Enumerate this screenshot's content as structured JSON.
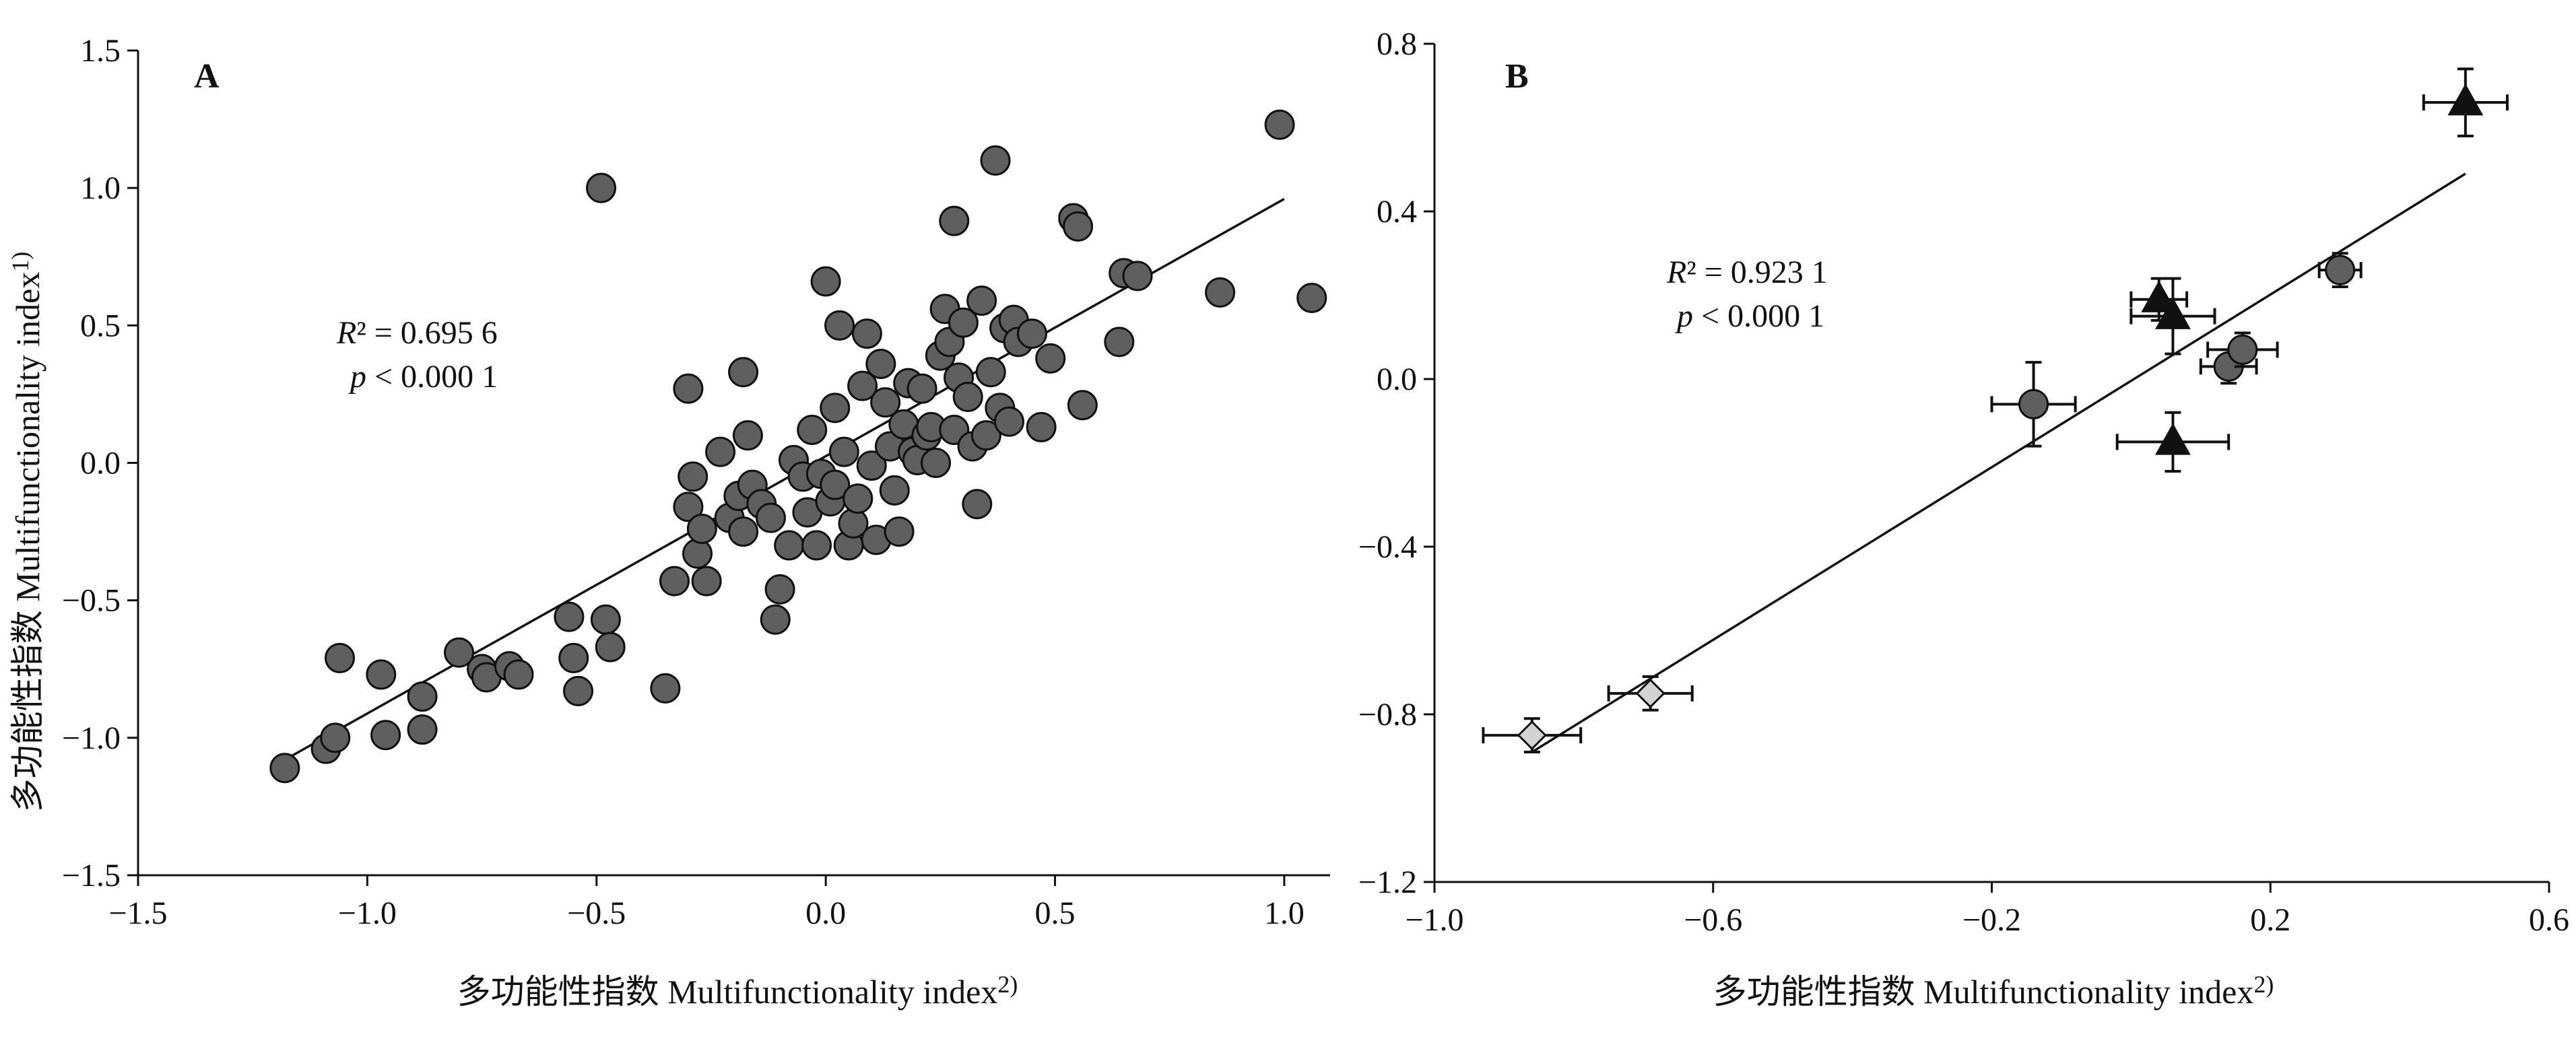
{
  "axis_text": {
    "y_title": "多功能性指数  Multifunctionality index",
    "y_sup": "1)",
    "x_title": "多功能性指数  Multifunctionality index",
    "x_sup": "2)"
  },
  "chart_data": [
    {
      "type": "scatter",
      "panel": "A",
      "xlabel": "多功能性指数  Multifunctionality index2)",
      "ylabel": "多功能性指数  Multifunctionality index1)",
      "xlim": [
        -1.5,
        1.1
      ],
      "ylim": [
        -1.5,
        1.5
      ],
      "xticks": [
        -1.5,
        -1.0,
        -0.5,
        0.0,
        0.5,
        1.0
      ],
      "yticks": [
        -1.5,
        -1.0,
        -0.5,
        0.0,
        0.5,
        1.0,
        1.5
      ],
      "xtick_labels": [
        "−1.5",
        "−1.0",
        "−0.5",
        "0.0",
        "0.5",
        "1.0"
      ],
      "ytick_labels": [
        "−1.5",
        "−1.0",
        "−0.5",
        "0.0",
        "0.5",
        "1.0",
        "1.5"
      ],
      "stat_line1": "R² = 0.695 6",
      "stat_line2": "p < 0.000 1",
      "fit": {
        "x": [
          -1.18,
          1.0
        ],
        "y": [
          -1.08,
          0.96
        ]
      },
      "points": [
        [
          -1.18,
          -1.11
        ],
        [
          -1.09,
          -1.04
        ],
        [
          -1.07,
          -1.0
        ],
        [
          -1.06,
          -0.71
        ],
        [
          -0.97,
          -0.77
        ],
        [
          -0.96,
          -0.99
        ],
        [
          -0.88,
          -0.85
        ],
        [
          -0.88,
          -0.97
        ],
        [
          -0.8,
          -0.69
        ],
        [
          -0.75,
          -0.75
        ],
        [
          -0.74,
          -0.78
        ],
        [
          -0.69,
          -0.74
        ],
        [
          -0.67,
          -0.77
        ],
        [
          -0.56,
          -0.56
        ],
        [
          -0.55,
          -0.71
        ],
        [
          -0.54,
          -0.83
        ],
        [
          -0.48,
          -0.57
        ],
        [
          -0.47,
          -0.67
        ],
        [
          -0.49,
          1.0
        ],
        [
          -0.35,
          -0.82
        ],
        [
          -0.33,
          -0.43
        ],
        [
          -0.3,
          -0.16
        ],
        [
          -0.3,
          0.27
        ],
        [
          -0.29,
          -0.05
        ],
        [
          -0.28,
          -0.33
        ],
        [
          -0.27,
          -0.24
        ],
        [
          -0.26,
          -0.43
        ],
        [
          -0.23,
          0.04
        ],
        [
          -0.21,
          -0.2
        ],
        [
          -0.19,
          -0.12
        ],
        [
          -0.18,
          -0.25
        ],
        [
          -0.18,
          0.33
        ],
        [
          -0.17,
          0.1
        ],
        [
          -0.16,
          -0.08
        ],
        [
          -0.14,
          -0.15
        ],
        [
          -0.12,
          -0.2
        ],
        [
          -0.11,
          -0.57
        ],
        [
          -0.1,
          -0.46
        ],
        [
          -0.08,
          -0.3
        ],
        [
          -0.07,
          0.01
        ],
        [
          -0.05,
          -0.05
        ],
        [
          -0.04,
          -0.18
        ],
        [
          -0.03,
          0.12
        ],
        [
          -0.02,
          -0.3
        ],
        [
          -0.01,
          -0.04
        ],
        [
          0.0,
          0.66
        ],
        [
          0.01,
          -0.14
        ],
        [
          0.02,
          0.2
        ],
        [
          0.02,
          -0.08
        ],
        [
          0.03,
          0.5
        ],
        [
          0.04,
          0.04
        ],
        [
          0.05,
          -0.3
        ],
        [
          0.06,
          -0.22
        ],
        [
          0.07,
          -0.13
        ],
        [
          0.08,
          0.28
        ],
        [
          0.09,
          0.47
        ],
        [
          0.1,
          -0.01
        ],
        [
          0.11,
          -0.28
        ],
        [
          0.12,
          0.36
        ],
        [
          0.13,
          0.22
        ],
        [
          0.14,
          0.06
        ],
        [
          0.15,
          -0.1
        ],
        [
          0.16,
          -0.25
        ],
        [
          0.17,
          0.14
        ],
        [
          0.18,
          0.29
        ],
        [
          0.19,
          0.04
        ],
        [
          0.2,
          0.01
        ],
        [
          0.21,
          0.27
        ],
        [
          0.22,
          0.1
        ],
        [
          0.23,
          0.13
        ],
        [
          0.24,
          0.0
        ],
        [
          0.25,
          0.39
        ],
        [
          0.26,
          0.56
        ],
        [
          0.27,
          0.44
        ],
        [
          0.28,
          0.12
        ],
        [
          0.28,
          0.88
        ],
        [
          0.29,
          0.31
        ],
        [
          0.3,
          0.51
        ],
        [
          0.31,
          0.24
        ],
        [
          0.32,
          0.06
        ],
        [
          0.33,
          -0.15
        ],
        [
          0.34,
          0.59
        ],
        [
          0.35,
          0.1
        ],
        [
          0.36,
          0.33
        ],
        [
          0.37,
          1.1
        ],
        [
          0.38,
          0.2
        ],
        [
          0.39,
          0.49
        ],
        [
          0.4,
          0.15
        ],
        [
          0.41,
          0.52
        ],
        [
          0.42,
          0.44
        ],
        [
          0.45,
          0.47
        ],
        [
          0.47,
          0.13
        ],
        [
          0.49,
          0.38
        ],
        [
          0.54,
          0.89
        ],
        [
          0.55,
          0.86
        ],
        [
          0.56,
          0.21
        ],
        [
          0.64,
          0.44
        ],
        [
          0.65,
          0.69
        ],
        [
          0.68,
          0.68
        ],
        [
          0.86,
          0.62
        ],
        [
          0.99,
          1.23
        ],
        [
          1.06,
          0.6
        ]
      ]
    },
    {
      "type": "scatter",
      "panel": "B",
      "xlabel": "多功能性指数  Multifunctionality index2)",
      "ylabel": "",
      "xlim": [
        -1.0,
        0.6
      ],
      "ylim": [
        -1.2,
        0.8
      ],
      "xticks": [
        -1.0,
        -0.6,
        -0.2,
        0.2,
        0.6
      ],
      "yticks": [
        -1.2,
        -0.8,
        -0.4,
        0.0,
        0.4,
        0.8
      ],
      "xtick_labels": [
        "−1.0",
        "−0.6",
        "−0.2",
        "0.2",
        "0.6"
      ],
      "ytick_labels": [
        "−1.2",
        "−0.8",
        "−0.4",
        "0.0",
        "0.4",
        "0.8"
      ],
      "stat_line1": "R² = 0.923 1",
      "stat_line2": "p < 0.000 1",
      "fit": {
        "x": [
          -0.86,
          0.48
        ],
        "y": [
          -0.89,
          0.49
        ]
      },
      "groups": [
        {
          "marker": "diamond",
          "color": "#d3d3d3",
          "points": [
            {
              "x": -0.86,
              "y": -0.85,
              "xerr": 0.07,
              "yerr": 0.04
            },
            {
              "x": -0.69,
              "y": -0.75,
              "xerr": 0.06,
              "yerr": 0.04
            }
          ]
        },
        {
          "marker": "circle",
          "color": "#5f5f5f",
          "points": [
            {
              "x": -0.14,
              "y": -0.06,
              "xerr": 0.06,
              "yerr": 0.1
            },
            {
              "x": 0.14,
              "y": 0.03,
              "xerr": 0.04,
              "yerr": 0.04
            },
            {
              "x": 0.16,
              "y": 0.07,
              "xerr": 0.05,
              "yerr": 0.04
            },
            {
              "x": 0.3,
              "y": 0.26,
              "xerr": 0.03,
              "yerr": 0.04
            }
          ]
        },
        {
          "marker": "triangle",
          "color": "#111111",
          "points": [
            {
              "x": 0.04,
              "y": 0.19,
              "xerr": 0.04,
              "yerr": 0.05
            },
            {
              "x": 0.06,
              "y": 0.15,
              "xerr": 0.06,
              "yerr": 0.09
            },
            {
              "x": 0.06,
              "y": -0.15,
              "xerr": 0.08,
              "yerr": 0.07
            },
            {
              "x": 0.48,
              "y": 0.66,
              "xerr": 0.06,
              "yerr": 0.08
            }
          ]
        }
      ]
    }
  ]
}
